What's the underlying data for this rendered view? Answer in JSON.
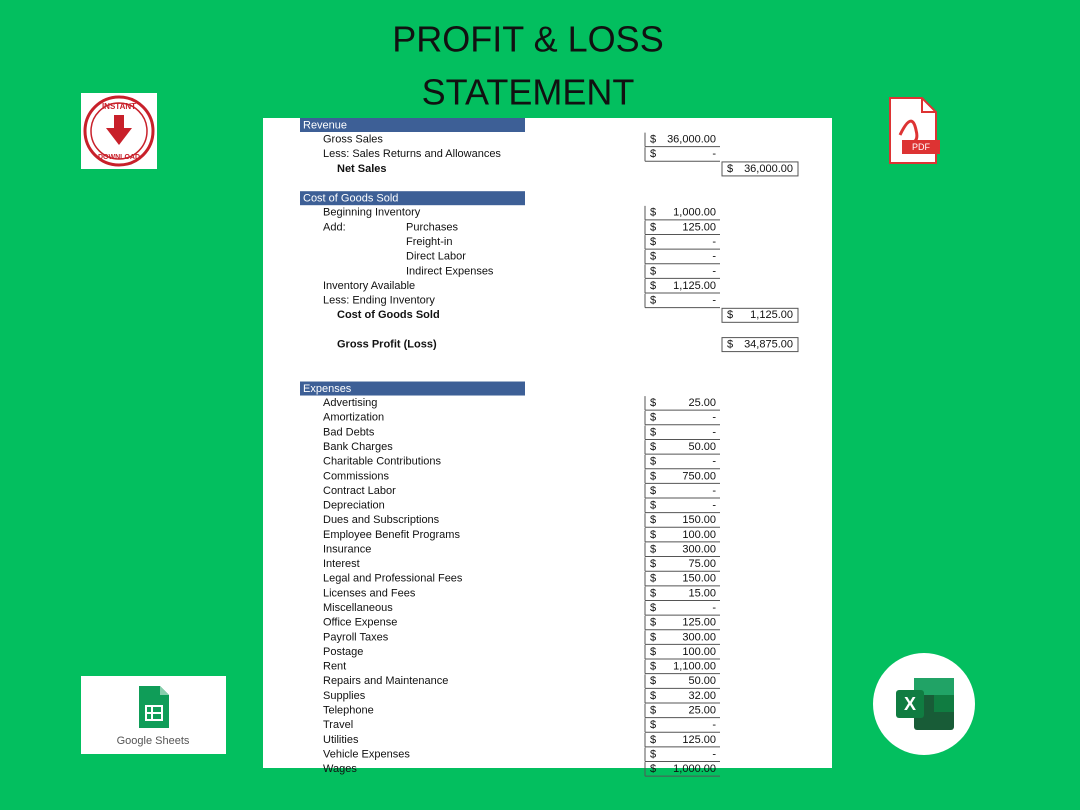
{
  "header": {
    "title_line1": "PROFIT & LOSS",
    "title_line2": "STATEMENT"
  },
  "badges": {
    "instant": "INSTANT",
    "download": "DOWNLOAD",
    "pdf": "PDF",
    "sheets": "Google Sheets",
    "excel": "X"
  },
  "statement": {
    "currency": "$",
    "sections": [
      {
        "header": "Revenue",
        "rows": [
          {
            "label": "Gross Sales",
            "col1": "36,000.00"
          },
          {
            "label": "Less: Sales Returns and Allowances",
            "col1": "-"
          },
          {
            "total": "Net Sales",
            "col2": "36,000.00"
          }
        ]
      },
      {
        "header": "Cost of Goods Sold",
        "rows": [
          {
            "label": "Beginning Inventory",
            "col1": "1,000.00"
          },
          {
            "label": "Add:",
            "sublabel": "Purchases",
            "col1": "125.00"
          },
          {
            "sublabel": "Freight-in",
            "col1": "-"
          },
          {
            "sublabel": "Direct Labor",
            "col1": "-"
          },
          {
            "sublabel": "Indirect Expenses",
            "col1": "-"
          },
          {
            "label": "Inventory Available",
            "col1": "1,125.00"
          },
          {
            "label": "Less: Ending Inventory",
            "col1": "-"
          },
          {
            "total": "Cost of Goods Sold",
            "col2": "1,125.00"
          }
        ]
      },
      {
        "rows": [
          {
            "total": "Gross Profit (Loss)",
            "col2": "34,875.00"
          }
        ]
      },
      {
        "header": "Expenses",
        "rows": [
          {
            "label": "Advertising",
            "col1": "25.00"
          },
          {
            "label": "Amortization",
            "col1": "-"
          },
          {
            "label": "Bad Debts",
            "col1": "-"
          },
          {
            "label": "Bank Charges",
            "col1": "50.00"
          },
          {
            "label": "Charitable Contributions",
            "col1": "-"
          },
          {
            "label": "Commissions",
            "col1": "750.00"
          },
          {
            "label": "Contract Labor",
            "col1": "-"
          },
          {
            "label": "Depreciation",
            "col1": "-"
          },
          {
            "label": "Dues and Subscriptions",
            "col1": "150.00"
          },
          {
            "label": "Employee Benefit Programs",
            "col1": "100.00"
          },
          {
            "label": "Insurance",
            "col1": "300.00"
          },
          {
            "label": "Interest",
            "col1": "75.00"
          },
          {
            "label": "Legal and Professional Fees",
            "col1": "150.00"
          },
          {
            "label": "Licenses and Fees",
            "col1": "15.00"
          },
          {
            "label": "Miscellaneous",
            "col1": "-"
          },
          {
            "label": "Office Expense",
            "col1": "125.00"
          },
          {
            "label": "Payroll Taxes",
            "col1": "300.00"
          },
          {
            "label": "Postage",
            "col1": "100.00"
          },
          {
            "label": "Rent",
            "col1": "1,100.00"
          },
          {
            "label": "Repairs and Maintenance",
            "col1": "50.00"
          },
          {
            "label": "Supplies",
            "col1": "32.00"
          },
          {
            "label": "Telephone",
            "col1": "25.00"
          },
          {
            "label": "Travel",
            "col1": "-"
          },
          {
            "label": "Utilities",
            "col1": "125.00"
          },
          {
            "label": "Vehicle Expenses",
            "col1": "-"
          },
          {
            "label": "Wages",
            "col1": "1,000.00"
          }
        ]
      }
    ]
  }
}
